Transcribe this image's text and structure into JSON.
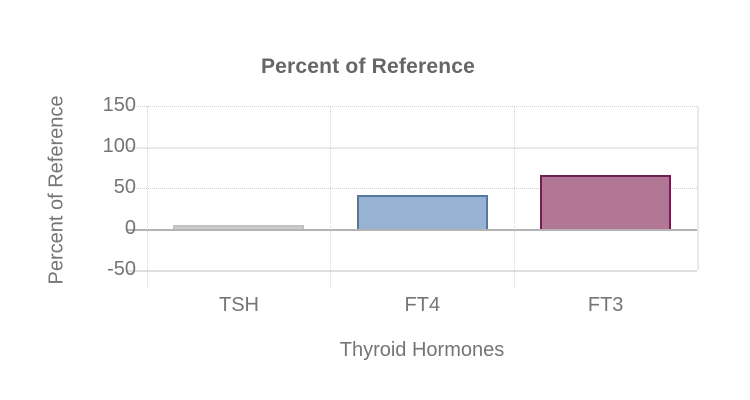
{
  "chart_data": {
    "type": "bar",
    "title": "Percent of Reference",
    "xlabel": "Thyroid Hormones",
    "ylabel": "Percent of Reference",
    "categories": [
      "TSH",
      "FT4",
      "FT3"
    ],
    "values": [
      5,
      41,
      66
    ],
    "ylim": [
      -50,
      150
    ],
    "yticks": [
      150,
      100,
      50,
      0,
      -50
    ],
    "grid": "on",
    "legend": "none",
    "background_color": "#ffffff",
    "bar_fill_colors": [
      "#cdcdcd",
      "#97b2d2",
      "#b27795"
    ],
    "bar_border_colors": [
      "#c2c2c2",
      "#54789f",
      "#6e2150"
    ],
    "zero_line_color": "#b3b3b3",
    "gridline_color": "#e8e8e8",
    "title_color": "#666666",
    "label_color": "#757575"
  }
}
